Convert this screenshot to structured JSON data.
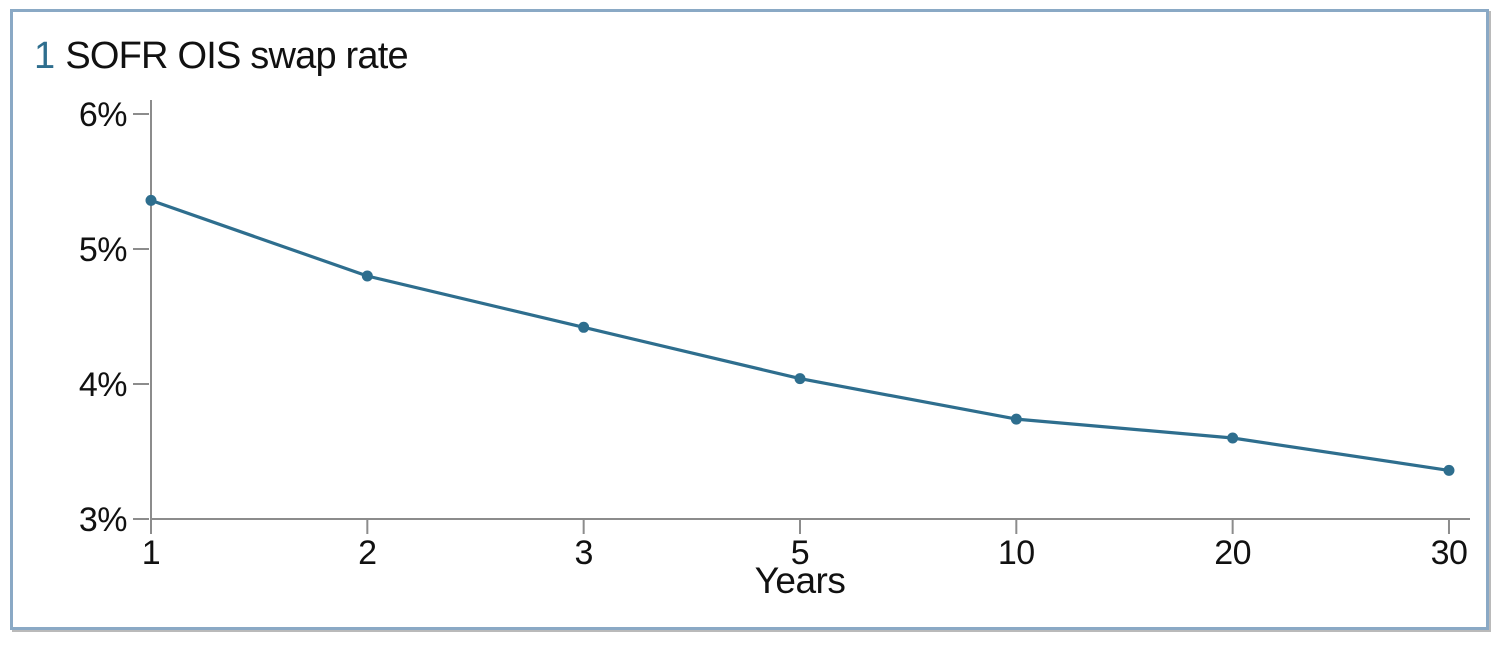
{
  "header": {
    "number": "1",
    "title": "SOFR OIS swap rate"
  },
  "colors": {
    "accent": "#2e6e8e",
    "frame_border": "#8aa9c5",
    "axis": "#8c8c8c",
    "text": "#111111"
  },
  "chart_data": {
    "type": "line",
    "title": "1 SOFR OIS swap rate",
    "categories": [
      "1",
      "2",
      "3",
      "5",
      "10",
      "20",
      "30"
    ],
    "values": [
      5.36,
      4.8,
      4.42,
      4.04,
      3.74,
      3.6,
      3.36
    ],
    "series": [
      {
        "name": "SOFR OIS swap rate",
        "values": [
          5.36,
          4.8,
          4.42,
          4.04,
          3.74,
          3.6,
          3.36
        ]
      }
    ],
    "xlabel": "Years",
    "ylabel": "",
    "ylim": [
      3,
      6
    ],
    "yticks": [
      3,
      4,
      5,
      6
    ],
    "ytick_suffix": "%",
    "grid": false,
    "legend_position": "none",
    "marker": "circle",
    "line_color": "#2e6e8e"
  }
}
